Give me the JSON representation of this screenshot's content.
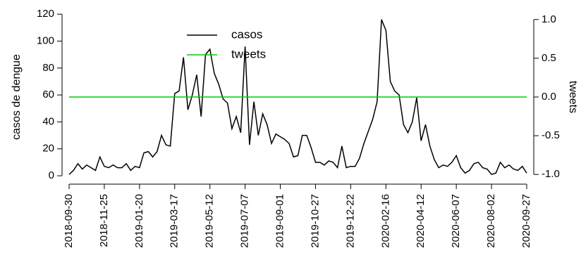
{
  "chart_data": {
    "type": "line",
    "categories": [
      "2018-09-30",
      null,
      null,
      null,
      null,
      null,
      null,
      null,
      "2018-11-25",
      null,
      null,
      null,
      null,
      null,
      null,
      null,
      "2019-01-20",
      null,
      null,
      null,
      null,
      null,
      null,
      null,
      "2019-03-17",
      null,
      null,
      null,
      null,
      null,
      null,
      null,
      "2019-05-12",
      null,
      null,
      null,
      null,
      null,
      null,
      null,
      "2019-07-07",
      null,
      null,
      null,
      null,
      null,
      null,
      null,
      "2019-09-01",
      null,
      null,
      null,
      null,
      null,
      null,
      null,
      "2019-10-27",
      null,
      null,
      null,
      null,
      null,
      null,
      null,
      "2019-12-22",
      null,
      null,
      null,
      null,
      null,
      null,
      null,
      "2020-02-16",
      null,
      null,
      null,
      null,
      null,
      null,
      null,
      "2020-04-12",
      null,
      null,
      null,
      null,
      null,
      null,
      null,
      "2020-06-07",
      null,
      null,
      null,
      null,
      null,
      null,
      null,
      "2020-08-02",
      null,
      null,
      null,
      null,
      null,
      null,
      null,
      "2020-09-27"
    ],
    "series": [
      {
        "name": "casos",
        "color": "#000000",
        "values": [
          1,
          4,
          9,
          5,
          8,
          6,
          4,
          14,
          7,
          6,
          8,
          6,
          6,
          9,
          4,
          7,
          6,
          17,
          18,
          14,
          18,
          30,
          23,
          22,
          61,
          63,
          88,
          49,
          60,
          75,
          44,
          90,
          94,
          76,
          68,
          57,
          54,
          35,
          44,
          32,
          96,
          23,
          55,
          30,
          46,
          38,
          24,
          31,
          29,
          27,
          24,
          14,
          15,
          30,
          30,
          21,
          10,
          10,
          8,
          11,
          10,
          6,
          22,
          6,
          7,
          7,
          13,
          24,
          33,
          42,
          55,
          116,
          108,
          70,
          63,
          60,
          38,
          32,
          40,
          58,
          26,
          38,
          22,
          12,
          6,
          8,
          7,
          10,
          15,
          6,
          2,
          4,
          9,
          10,
          6,
          5,
          1,
          2,
          10,
          6,
          8,
          5,
          4,
          7,
          2
        ]
      },
      {
        "name": "tweets",
        "color": "#00cc00",
        "axis": "y2",
        "values": [
          0,
          0,
          0,
          0,
          0,
          0,
          0,
          0,
          0,
          0,
          0,
          0,
          0,
          0,
          0,
          0,
          0,
          0,
          0,
          0,
          0,
          0,
          0,
          0,
          0,
          0,
          0,
          0,
          0,
          0,
          0,
          0,
          0,
          0,
          0,
          0,
          0,
          0,
          0,
          0,
          0,
          0,
          0,
          0,
          0,
          0,
          0,
          0,
          0,
          0,
          0,
          0,
          0,
          0,
          0,
          0,
          0,
          0,
          0,
          0,
          0,
          0,
          0,
          0,
          0,
          0,
          0,
          0,
          0,
          0,
          0,
          0,
          0,
          0,
          0,
          0,
          0,
          0,
          0,
          0,
          0,
          0,
          0,
          0,
          0,
          0,
          0,
          0,
          0,
          0,
          0,
          0,
          0,
          0,
          0,
          0,
          0,
          0,
          0,
          0,
          0,
          0,
          0,
          0,
          0
        ]
      }
    ],
    "ylabel": "casos de dengue",
    "y2label": "tweets",
    "ylim": [
      -3.6,
      120.6
    ],
    "yticks": [
      0,
      20,
      40,
      60,
      80,
      100,
      120
    ],
    "y2lim": [
      -1.08,
      1.08
    ],
    "y2ticks": [
      {
        "value": -1,
        "label": "-1.0"
      },
      {
        "value": -0.5,
        "label": "-0.5"
      },
      {
        "value": 0,
        "label": "0.0"
      },
      {
        "value": 0.5,
        "label": "0.5"
      },
      {
        "value": 1,
        "label": "1.0"
      }
    ],
    "legend": "top"
  }
}
